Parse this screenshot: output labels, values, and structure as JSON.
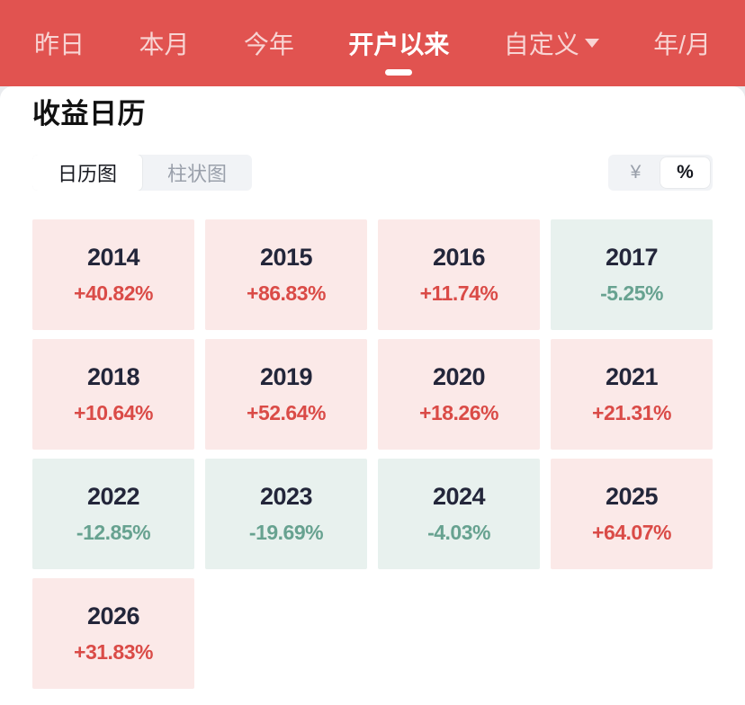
{
  "nav": {
    "tabs": [
      {
        "label": "昨日",
        "active": false
      },
      {
        "label": "本月",
        "active": false
      },
      {
        "label": "今年",
        "active": false
      },
      {
        "label": "开户以来",
        "active": true
      },
      {
        "label": "自定义",
        "active": false,
        "has_dropdown": true
      },
      {
        "label": "年/月",
        "active": false
      }
    ]
  },
  "page": {
    "title": "收益日历"
  },
  "view_toggle": {
    "options": [
      {
        "label": "日历图",
        "selected": true
      },
      {
        "label": "柱状图",
        "selected": false
      }
    ]
  },
  "unit_toggle": {
    "options": [
      {
        "label": "¥",
        "selected": false
      },
      {
        "label": "%",
        "selected": true
      }
    ]
  },
  "calendar": {
    "cells": [
      {
        "year": "2014",
        "value": "+40.82%",
        "trend": "up"
      },
      {
        "year": "2015",
        "value": "+86.83%",
        "trend": "up"
      },
      {
        "year": "2016",
        "value": "+11.74%",
        "trend": "up"
      },
      {
        "year": "2017",
        "value": "-5.25%",
        "trend": "down"
      },
      {
        "year": "2018",
        "value": "+10.64%",
        "trend": "up"
      },
      {
        "year": "2019",
        "value": "+52.64%",
        "trend": "up"
      },
      {
        "year": "2020",
        "value": "+18.26%",
        "trend": "up"
      },
      {
        "year": "2021",
        "value": "+21.31%",
        "trend": "up"
      },
      {
        "year": "2022",
        "value": "-12.85%",
        "trend": "down"
      },
      {
        "year": "2023",
        "value": "-19.69%",
        "trend": "down"
      },
      {
        "year": "2024",
        "value": "-4.03%",
        "trend": "down"
      },
      {
        "year": "2025",
        "value": "+64.07%",
        "trend": "up"
      },
      {
        "year": "2026",
        "value": "+31.83%",
        "trend": "up"
      }
    ]
  },
  "chart_data": {
    "type": "heatmap",
    "title": "收益日历",
    "unit": "%",
    "categories": [
      "2014",
      "2015",
      "2016",
      "2017",
      "2018",
      "2019",
      "2020",
      "2021",
      "2022",
      "2023",
      "2024",
      "2025",
      "2026"
    ],
    "values": [
      40.82,
      86.83,
      11.74,
      -5.25,
      10.64,
      52.64,
      18.26,
      21.31,
      -12.85,
      -19.69,
      -4.03,
      64.07,
      31.83
    ],
    "positive_color": "#da4b47",
    "negative_color": "#67a290",
    "layout": "4-column calendar grid, row-major by year"
  },
  "colors": {
    "nav_background": "#e15350",
    "up_background": "#fbe9e8",
    "up_text": "#da4b47",
    "down_background": "#e8f1ee",
    "down_text": "#67a290",
    "year_text": "#23263a"
  }
}
